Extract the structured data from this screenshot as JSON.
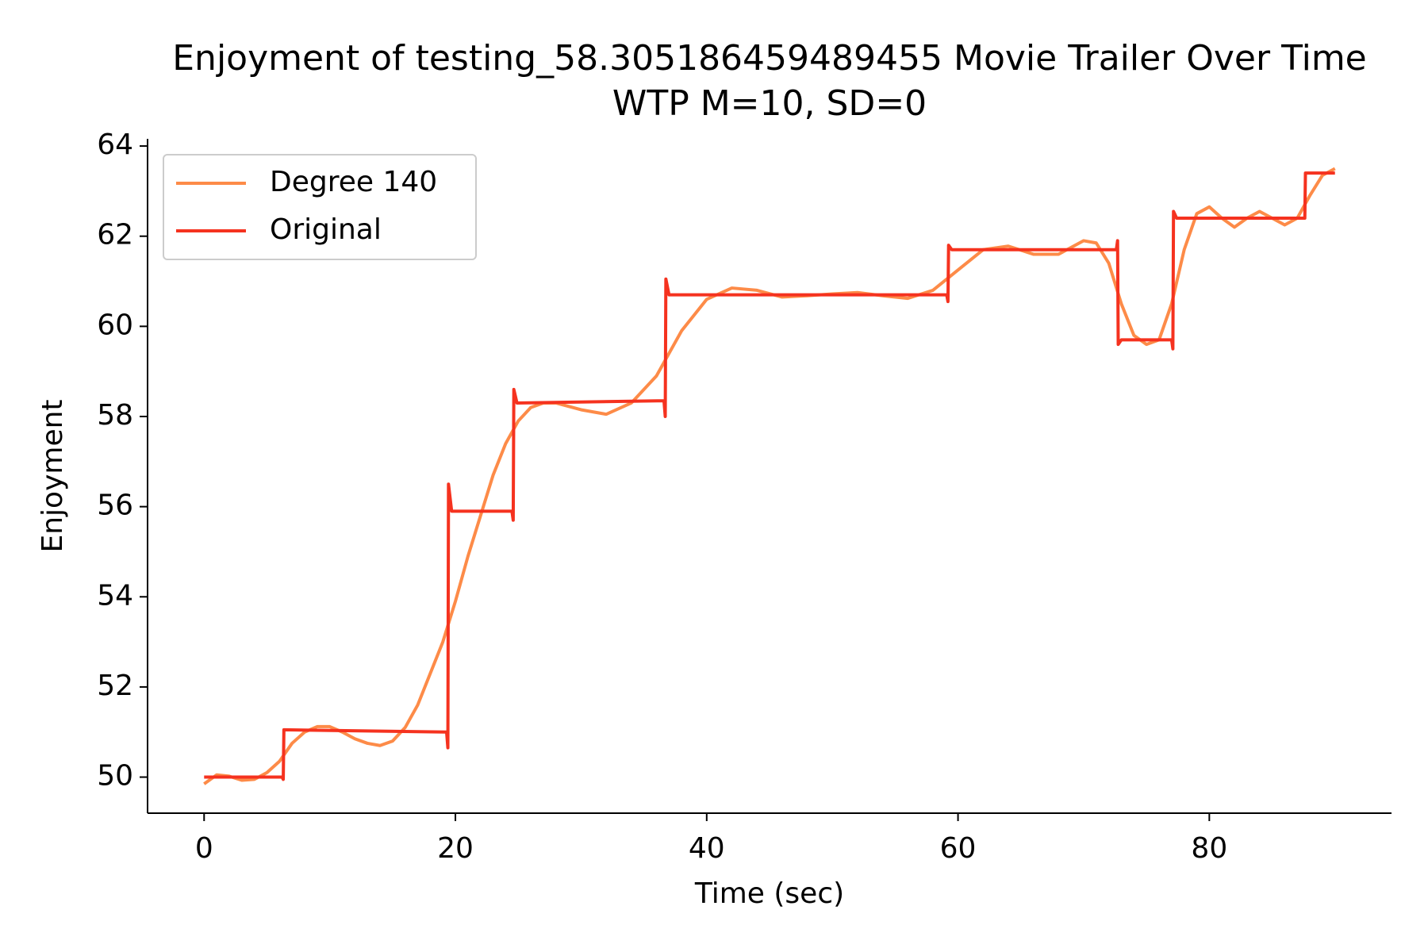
{
  "chart_data": {
    "type": "line",
    "title": "Enjoyment of testing_58.305186459489455 Movie Trailer Over Time",
    "subtitle": "WTP M=10, SD=0",
    "x_label": "Time (sec)",
    "y_label": "Enjoyment",
    "xlim": [
      -4.5,
      94.5
    ],
    "ylim": [
      49.2,
      64.16
    ],
    "xticks": [
      0,
      20,
      40,
      60,
      80
    ],
    "yticks": [
      50,
      52,
      54,
      56,
      58,
      60,
      62,
      64
    ],
    "grid": false,
    "legend": "upper left",
    "series": [
      {
        "name": "Degree 140",
        "color": "#fd8b48",
        "x": [
          0,
          1,
          2,
          3,
          4,
          5,
          6,
          7,
          8,
          9,
          10,
          11,
          12,
          13,
          14,
          15,
          16,
          17,
          18,
          19,
          20,
          21,
          22,
          23,
          24,
          25,
          26,
          27,
          28,
          30,
          32,
          34,
          36,
          38,
          40,
          42,
          44,
          46,
          48,
          50,
          52,
          54,
          56,
          58,
          60,
          62,
          64,
          66,
          68,
          70,
          71,
          72,
          73,
          74,
          75,
          76,
          77,
          78,
          79,
          80,
          81,
          82,
          83,
          84,
          85,
          86,
          87,
          88,
          89,
          90
        ],
        "values": [
          49.85,
          50.05,
          50.02,
          49.93,
          49.95,
          50.1,
          50.35,
          50.75,
          51.0,
          51.12,
          51.12,
          51.0,
          50.85,
          50.75,
          50.7,
          50.8,
          51.1,
          51.6,
          52.3,
          53.0,
          53.9,
          54.9,
          55.8,
          56.7,
          57.4,
          57.9,
          58.2,
          58.3,
          58.3,
          58.15,
          58.05,
          58.3,
          58.9,
          59.9,
          60.6,
          60.85,
          60.8,
          60.65,
          60.68,
          60.72,
          60.75,
          60.68,
          60.62,
          60.8,
          61.25,
          61.7,
          61.78,
          61.6,
          61.6,
          61.9,
          61.85,
          61.4,
          60.5,
          59.8,
          59.6,
          59.7,
          60.5,
          61.7,
          62.5,
          62.65,
          62.4,
          62.2,
          62.4,
          62.55,
          62.4,
          62.25,
          62.4,
          62.9,
          63.35,
          63.5
        ]
      },
      {
        "name": "Original",
        "color": "#f5321f",
        "x": [
          0,
          6.2,
          6.3,
          6.35,
          19.3,
          19.4,
          19.45,
          19.7,
          24.5,
          24.6,
          24.65,
          24.9,
          36.6,
          36.7,
          36.75,
          37.0,
          59.1,
          59.2,
          59.25,
          59.5,
          72.6,
          72.7,
          72.75,
          73.0,
          77.0,
          77.1,
          77.15,
          77.4,
          87.5,
          87.6,
          87.65,
          90
        ],
        "values": [
          50.0,
          50.0,
          49.95,
          51.05,
          51.0,
          50.65,
          56.5,
          55.9,
          55.9,
          55.7,
          58.6,
          58.3,
          58.35,
          58.0,
          61.05,
          60.7,
          60.7,
          60.55,
          61.8,
          61.7,
          61.7,
          61.9,
          59.6,
          59.7,
          59.7,
          59.5,
          62.55,
          62.4,
          62.4,
          62.4,
          63.4,
          63.4
        ]
      }
    ]
  }
}
